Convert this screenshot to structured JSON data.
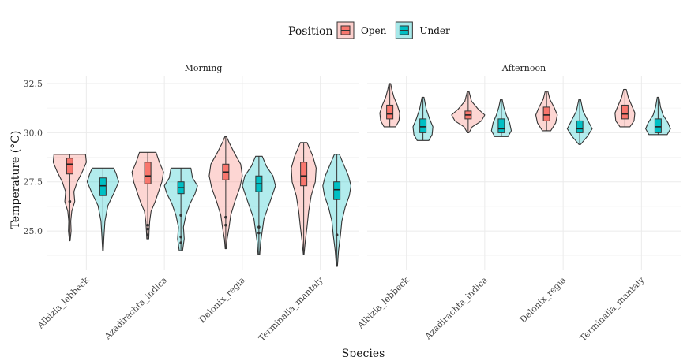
{
  "chart_data": {
    "type": "violin",
    "title": "",
    "xlabel": "Species",
    "ylabel": "Temperature (°C)",
    "ylim": [
      23,
      32.9
    ],
    "yticks": [
      25.0,
      27.5,
      30.0,
      32.5
    ],
    "ytick_labels": [
      "25.0",
      "27.5",
      "30.0",
      "32.5"
    ],
    "grid": true,
    "legend": {
      "title": "Position",
      "placement": "top",
      "entries": [
        {
          "label": "Open",
          "color": "#F8766D"
        },
        {
          "label": "Under",
          "color": "#00BFC4"
        }
      ]
    },
    "categories": [
      "Albizia_lebbeck",
      "Azadirachta_indica",
      "Delonix_regia",
      "Terminalia_mantaly"
    ],
    "panels": [
      {
        "label": "Morning",
        "series": [
          {
            "name": "Open",
            "groups": [
              {
                "min": 24.5,
                "q1": 27.9,
                "median": 28.4,
                "q3": 28.7,
                "max": 28.9,
                "outliers": [
                  26.5
                ],
                "profile": [
                  [
                    24.5,
                    0.02
                  ],
                  [
                    25.0,
                    0.08
                  ],
                  [
                    25.5,
                    0.06
                  ],
                  [
                    26.0,
                    0.12
                  ],
                  [
                    26.5,
                    0.3
                  ],
                  [
                    27.0,
                    0.25
                  ],
                  [
                    27.5,
                    0.45
                  ],
                  [
                    28.0,
                    0.75
                  ],
                  [
                    28.5,
                    1.0
                  ],
                  [
                    28.9,
                    0.95
                  ]
                ]
              },
              {
                "min": 24.6,
                "q1": 27.4,
                "median": 27.8,
                "q3": 28.5,
                "max": 29.0,
                "outliers": [
                  24.8,
                  25.1,
                  25.3
                ],
                "profile": [
                  [
                    24.6,
                    0.06
                  ],
                  [
                    25.0,
                    0.08
                  ],
                  [
                    25.5,
                    0.12
                  ],
                  [
                    26.0,
                    0.2
                  ],
                  [
                    26.5,
                    0.45
                  ],
                  [
                    27.0,
                    0.65
                  ],
                  [
                    27.5,
                    0.85
                  ],
                  [
                    28.0,
                    0.95
                  ],
                  [
                    28.5,
                    0.7
                  ],
                  [
                    29.0,
                    0.5
                  ]
                ]
              },
              {
                "min": 24.1,
                "q1": 27.6,
                "median": 28.0,
                "q3": 28.4,
                "max": 29.8,
                "outliers": [
                  25.3,
                  25.7
                ],
                "profile": [
                  [
                    24.1,
                    0.03
                  ],
                  [
                    24.6,
                    0.08
                  ],
                  [
                    25.2,
                    0.2
                  ],
                  [
                    25.8,
                    0.3
                  ],
                  [
                    26.5,
                    0.55
                  ],
                  [
                    27.2,
                    0.85
                  ],
                  [
                    27.8,
                    1.0
                  ],
                  [
                    28.4,
                    0.9
                  ],
                  [
                    29.0,
                    0.5
                  ],
                  [
                    29.5,
                    0.2
                  ],
                  [
                    29.8,
                    0.05
                  ]
                ]
              },
              {
                "min": 23.8,
                "q1": 27.3,
                "median": 27.8,
                "q3": 28.5,
                "max": 29.5,
                "outliers": [],
                "profile": [
                  [
                    23.8,
                    0.02
                  ],
                  [
                    24.5,
                    0.1
                  ],
                  [
                    25.2,
                    0.2
                  ],
                  [
                    26.0,
                    0.3
                  ],
                  [
                    26.8,
                    0.45
                  ],
                  [
                    27.5,
                    0.7
                  ],
                  [
                    28.2,
                    0.75
                  ],
                  [
                    28.8,
                    0.55
                  ],
                  [
                    29.2,
                    0.35
                  ],
                  [
                    29.5,
                    0.2
                  ]
                ]
              }
            ]
          },
          {
            "name": "Under",
            "groups": [
              {
                "min": 24.0,
                "q1": 26.8,
                "median": 27.3,
                "q3": 27.7,
                "max": 28.2,
                "outliers": [],
                "profile": [
                  [
                    24.0,
                    0.02
                  ],
                  [
                    24.7,
                    0.06
                  ],
                  [
                    25.5,
                    0.12
                  ],
                  [
                    26.3,
                    0.3
                  ],
                  [
                    27.0,
                    0.7
                  ],
                  [
                    27.5,
                    0.95
                  ],
                  [
                    27.9,
                    0.8
                  ],
                  [
                    28.2,
                    0.65
                  ]
                ]
              },
              {
                "min": 24.0,
                "q1": 26.9,
                "median": 27.2,
                "q3": 27.5,
                "max": 28.2,
                "outliers": [
                  24.7,
                  25.8,
                  24.4
                ],
                "profile": [
                  [
                    24.0,
                    0.1
                  ],
                  [
                    24.6,
                    0.2
                  ],
                  [
                    25.2,
                    0.15
                  ],
                  [
                    25.8,
                    0.3
                  ],
                  [
                    26.4,
                    0.55
                  ],
                  [
                    26.9,
                    0.85
                  ],
                  [
                    27.3,
                    1.0
                  ],
                  [
                    27.7,
                    0.7
                  ],
                  [
                    28.2,
                    0.6
                  ]
                ]
              },
              {
                "min": 23.8,
                "q1": 27.0,
                "median": 27.4,
                "q3": 27.8,
                "max": 28.8,
                "outliers": [
                  24.9,
                  25.2
                ],
                "profile": [
                  [
                    23.8,
                    0.05
                  ],
                  [
                    24.4,
                    0.1
                  ],
                  [
                    25.0,
                    0.2
                  ],
                  [
                    25.6,
                    0.3
                  ],
                  [
                    26.2,
                    0.55
                  ],
                  [
                    26.8,
                    0.8
                  ],
                  [
                    27.3,
                    1.0
                  ],
                  [
                    27.8,
                    0.85
                  ],
                  [
                    28.3,
                    0.45
                  ],
                  [
                    28.8,
                    0.2
                  ]
                ]
              },
              {
                "min": 23.2,
                "q1": 26.6,
                "median": 27.1,
                "q3": 27.5,
                "max": 28.9,
                "outliers": [
                  24.8
                ],
                "profile": [
                  [
                    23.2,
                    0.03
                  ],
                  [
                    24.0,
                    0.1
                  ],
                  [
                    24.8,
                    0.22
                  ],
                  [
                    25.5,
                    0.3
                  ],
                  [
                    26.2,
                    0.5
                  ],
                  [
                    26.8,
                    0.75
                  ],
                  [
                    27.3,
                    0.85
                  ],
                  [
                    27.8,
                    0.7
                  ],
                  [
                    28.4,
                    0.4
                  ],
                  [
                    28.9,
                    0.15
                  ]
                ]
              }
            ]
          }
        ]
      },
      {
        "label": "Afternoon",
        "series": [
          {
            "name": "Open",
            "groups": [
              {
                "min": 30.3,
                "q1": 30.7,
                "median": 30.95,
                "q3": 31.4,
                "max": 32.5,
                "outliers": [],
                "profile": [
                  [
                    30.3,
                    0.35
                  ],
                  [
                    30.6,
                    0.55
                  ],
                  [
                    31.0,
                    0.6
                  ],
                  [
                    31.4,
                    0.45
                  ],
                  [
                    31.8,
                    0.25
                  ],
                  [
                    32.2,
                    0.12
                  ],
                  [
                    32.5,
                    0.05
                  ]
                ]
              },
              {
                "min": 30.0,
                "q1": 30.7,
                "median": 30.9,
                "q3": 31.1,
                "max": 32.1,
                "outliers": [],
                "profile": [
                  [
                    30.0,
                    0.05
                  ],
                  [
                    30.3,
                    0.25
                  ],
                  [
                    30.6,
                    0.8
                  ],
                  [
                    30.9,
                    1.0
                  ],
                  [
                    31.2,
                    0.6
                  ],
                  [
                    31.6,
                    0.2
                  ],
                  [
                    32.1,
                    0.05
                  ]
                ]
              },
              {
                "min": 30.1,
                "q1": 30.6,
                "median": 30.9,
                "q3": 31.3,
                "max": 32.1,
                "outliers": [],
                "profile": [
                  [
                    30.1,
                    0.25
                  ],
                  [
                    30.5,
                    0.55
                  ],
                  [
                    30.9,
                    0.65
                  ],
                  [
                    31.3,
                    0.45
                  ],
                  [
                    31.7,
                    0.2
                  ],
                  [
                    32.1,
                    0.08
                  ]
                ]
              },
              {
                "min": 30.3,
                "q1": 30.7,
                "median": 30.95,
                "q3": 31.4,
                "max": 32.2,
                "outliers": [],
                "profile": [
                  [
                    30.3,
                    0.3
                  ],
                  [
                    30.6,
                    0.55
                  ],
                  [
                    31.0,
                    0.6
                  ],
                  [
                    31.4,
                    0.4
                  ],
                  [
                    31.8,
                    0.2
                  ],
                  [
                    32.2,
                    0.08
                  ]
                ]
              }
            ]
          },
          {
            "name": "Under",
            "groups": [
              {
                "min": 29.6,
                "q1": 30.0,
                "median": 30.3,
                "q3": 30.7,
                "max": 31.8,
                "outliers": [],
                "profile": [
                  [
                    29.6,
                    0.35
                  ],
                  [
                    29.9,
                    0.55
                  ],
                  [
                    30.3,
                    0.6
                  ],
                  [
                    30.7,
                    0.4
                  ],
                  [
                    31.2,
                    0.2
                  ],
                  [
                    31.8,
                    0.06
                  ]
                ]
              },
              {
                "min": 29.8,
                "q1": 30.0,
                "median": 30.2,
                "q3": 30.7,
                "max": 31.7,
                "outliers": [],
                "profile": [
                  [
                    29.8,
                    0.4
                  ],
                  [
                    30.1,
                    0.6
                  ],
                  [
                    30.5,
                    0.5
                  ],
                  [
                    30.9,
                    0.3
                  ],
                  [
                    31.3,
                    0.15
                  ],
                  [
                    31.7,
                    0.05
                  ]
                ]
              },
              {
                "min": 29.4,
                "q1": 30.0,
                "median": 30.2,
                "q3": 30.6,
                "max": 31.7,
                "outliers": [],
                "profile": [
                  [
                    29.4,
                    0.05
                  ],
                  [
                    29.8,
                    0.45
                  ],
                  [
                    30.2,
                    0.75
                  ],
                  [
                    30.6,
                    0.5
                  ],
                  [
                    31.1,
                    0.2
                  ],
                  [
                    31.7,
                    0.05
                  ]
                ]
              },
              {
                "min": 29.9,
                "q1": 30.0,
                "median": 30.3,
                "q3": 30.7,
                "max": 31.8,
                "outliers": [],
                "profile": [
                  [
                    29.9,
                    0.55
                  ],
                  [
                    30.2,
                    0.75
                  ],
                  [
                    30.5,
                    0.6
                  ],
                  [
                    30.9,
                    0.3
                  ],
                  [
                    31.3,
                    0.15
                  ],
                  [
                    31.8,
                    0.05
                  ]
                ]
              }
            ]
          }
        ]
      }
    ]
  }
}
